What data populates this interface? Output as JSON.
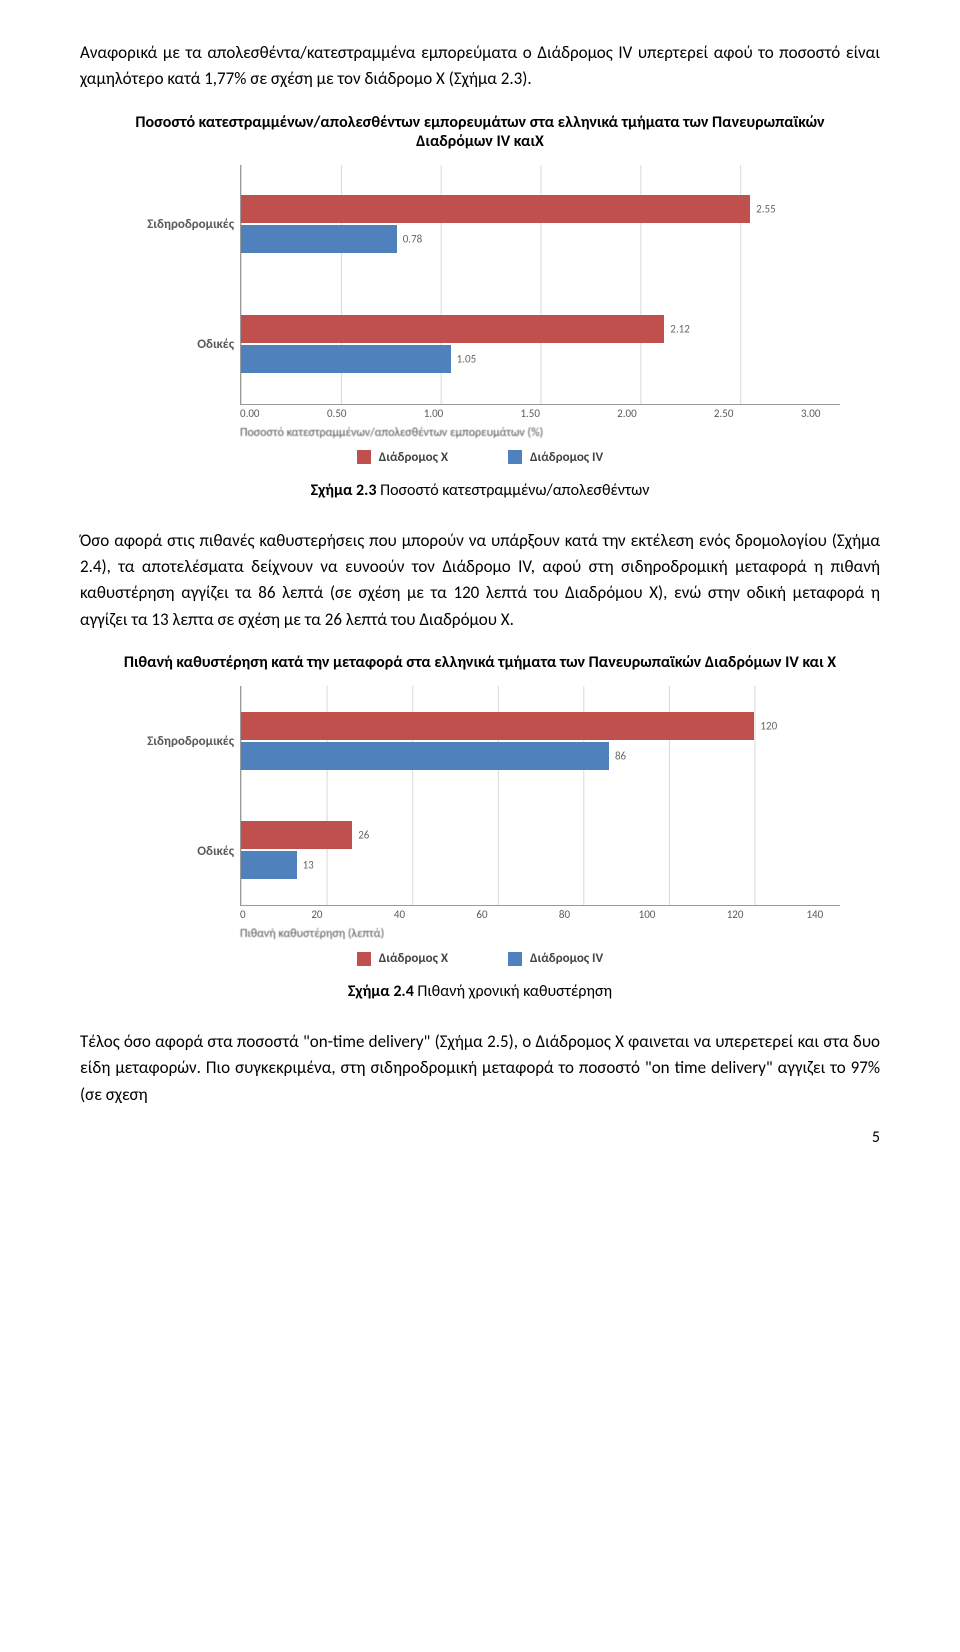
{
  "colors": {
    "seriesX": "#c0504d",
    "seriesIV": "#4f81bd",
    "text": "#000000",
    "axis": "#9a9a9a",
    "grid": "#d9d9d9"
  },
  "para1": "Αναφορικά με τα απολεσθέντα/κατεστραμμένα εμπορεύματα ο Διάδρομος IV υπερτερεί αφού  το ποσοστό είναι χαμηλότερο κατά 1,77% σε σχέση με τον διάδρομο Χ (Σχήμα 2.3).",
  "chart1": {
    "title": "Ποσοστό κατεστραμμένων/απολεσθέντων εμπορευμάτων στα ελληνικά τμήματα των Πανευρωπαϊκών Διαδρόμων IV καιΧ",
    "ylabels": [
      "Σιδηροδρομικές",
      "Οδικές"
    ],
    "groups": [
      {
        "x": 2.55,
        "iv": 0.78
      },
      {
        "x": 2.12,
        "iv": 1.05
      }
    ],
    "xmin": 0.0,
    "xmax": 3.0,
    "xticks": [
      "0.00",
      "0.50",
      "1.00",
      "1.50",
      "2.00",
      "2.50",
      "3.00"
    ],
    "xtitle": "Ποσοστό κατεστραμμένων/απολεσθέντων εμπορευμάτων (%)"
  },
  "caption1_bold": "Σχήμα 2.3",
  "caption1_rest": " Ποσοστό κατεστραμμένω/απολεσθέντων",
  "para2": "Όσο αφορά στις πιθανές καθυστερήσεις που μπορούν να υπάρξουν κατά την εκτέλεση ενός δρομολογίου (Σχήμα 2.4), τα αποτελέσματα δείχνουν να ευνοούν τον Διάδρομο IV, αφού στη σιδηροδρομική μεταφορά η πιθανή καθυστέρηση αγγίζει τα 86 λεπτά (σε σχέση με τα 120 λεπτά του Διαδρόμου Χ), ενώ στην οδική μεταφορά η αγγίζει τα 13 λεπτα σε σχέση με τα 26 λεπτά του Διαδρόμου Χ.",
  "chart2": {
    "title": "Πιθανή καθυστέρηση κατά την μεταφορά στα ελληνικά τμήματα των Πανευρωπαϊκών Διαδρόμων IV και  Χ",
    "ylabels": [
      "Σιδηροδρομικές",
      "Οδικές"
    ],
    "groups": [
      {
        "x": 120,
        "iv": 86
      },
      {
        "x": 26,
        "iv": 13
      }
    ],
    "xmin": 0,
    "xmax": 140,
    "xticks": [
      "0",
      "20",
      "40",
      "60",
      "80",
      "100",
      "120",
      "140"
    ],
    "xtitle": "Πιθανή καθυστέρηση (λεπτά)"
  },
  "legend": {
    "x": "Διάδρομος Χ",
    "iv": "Διάδρομος IV"
  },
  "caption2_bold": "Σχήμα 2.4",
  "caption2_rest": " Πιθανή χρονική καθυστέρηση",
  "para3": "Τέλος όσο αφορά στα ποσοστά \"on-time delivery\" (Σχήμα 2.5), ο Διάδρομος Χ φαινεται να υπερετερεί και στα δυο είδη μεταφορών. Πιο συγκεκριμένα, στη σιδηροδρομική μεταφορά το ποσοστό \"on time delivery\" αγγιζει το 97% (σε σχεση",
  "pagenum": "5"
}
